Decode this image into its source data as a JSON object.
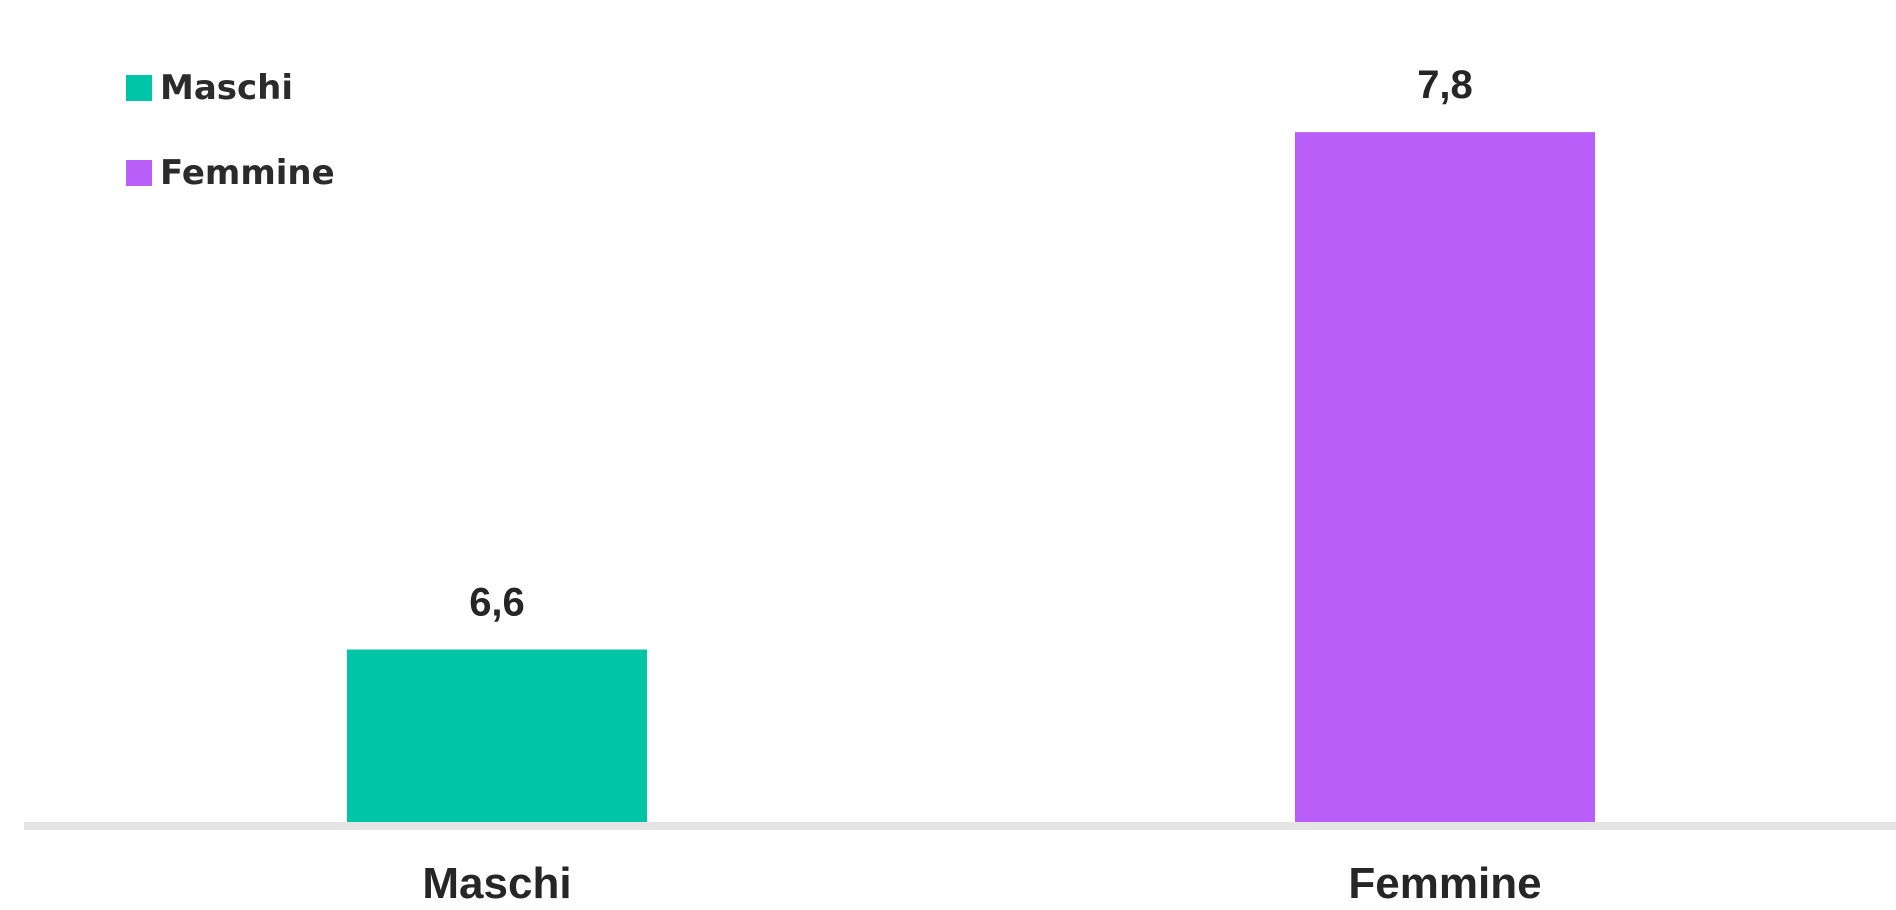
{
  "chart_data": {
    "type": "bar",
    "categories": [
      "Maschi",
      "Femmine"
    ],
    "values": [
      6.6,
      7.8
    ],
    "value_labels": [
      "6,6",
      "7,8"
    ],
    "colors": [
      "#00c4a6",
      "#b95ef9"
    ],
    "title": "",
    "xlabel": "",
    "ylabel": "",
    "ylim": [
      6.2,
      7.9
    ],
    "grid": false,
    "baseline_color": "#e4e4e4",
    "legend": {
      "placement": "top-left",
      "entries": [
        {
          "label": "Maschi",
          "color": "#00c4a6"
        },
        {
          "label": "Femmine",
          "color": "#b95ef9"
        }
      ]
    }
  }
}
